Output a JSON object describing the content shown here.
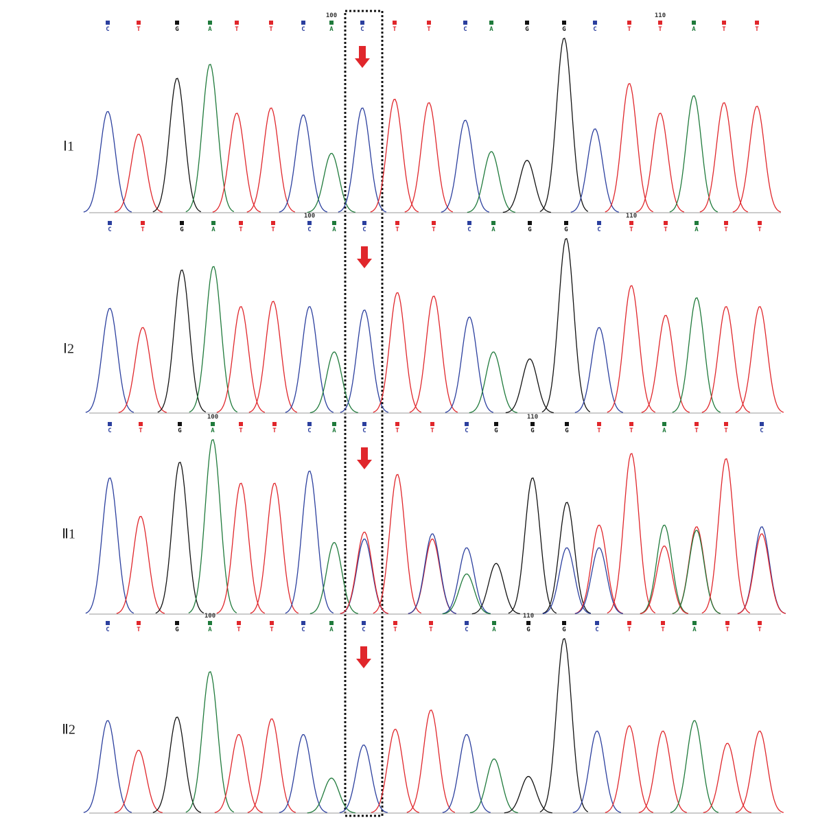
{
  "base_colors": {
    "A": "#1f7a3b",
    "C": "#2b3f9e",
    "G": "#111111",
    "T": "#e0262b"
  },
  "tracks": [
    {
      "label": "Ⅰ1",
      "bases": [
        "C",
        "T",
        "G",
        "A",
        "T",
        "T",
        "C",
        "A",
        "C",
        "T",
        "T",
        "C",
        "A",
        "G",
        "G",
        "C",
        "T",
        "T",
        "A",
        "T",
        "T"
      ],
      "positions": [
        null,
        null,
        null,
        null,
        null,
        null,
        null,
        100,
        null,
        null,
        null,
        null,
        null,
        null,
        null,
        null,
        null,
        110,
        null,
        null,
        null
      ],
      "heights": [
        58,
        45,
        77,
        85,
        57,
        60,
        56,
        34,
        60,
        65,
        63,
        53,
        35,
        30,
        100,
        48,
        74,
        57,
        67,
        63,
        61
      ]
    },
    {
      "label": "Ⅰ2",
      "bases": [
        "C",
        "T",
        "G",
        "A",
        "T",
        "T",
        "C",
        "A",
        "C",
        "T",
        "T",
        "C",
        "A",
        "G",
        "G",
        "C",
        "T",
        "T",
        "A",
        "T",
        "T"
      ],
      "positions": [
        null,
        null,
        null,
        null,
        null,
        null,
        100,
        null,
        null,
        null,
        null,
        null,
        null,
        null,
        null,
        null,
        110,
        null,
        null,
        null,
        null
      ],
      "heights": [
        60,
        49,
        82,
        84,
        61,
        64,
        61,
        35,
        59,
        69,
        67,
        55,
        35,
        31,
        100,
        49,
        73,
        56,
        66,
        61,
        61
      ]
    },
    {
      "label": "Ⅱ1",
      "bases": [
        "C",
        "T",
        "G",
        "A",
        "T",
        "T",
        "C",
        "A",
        "C",
        "T",
        "T",
        "C",
        "G",
        "G",
        "G",
        "T",
        "T",
        "A",
        "T",
        "T",
        "C"
      ],
      "positions": [
        null,
        null,
        null,
        100,
        null,
        null,
        null,
        null,
        null,
        null,
        null,
        null,
        null,
        110,
        null,
        null,
        null,
        null,
        null,
        null,
        null
      ],
      "heights": [
        78,
        56,
        87,
        100,
        75,
        75,
        82,
        41,
        43,
        80,
        43,
        38,
        29,
        78,
        64,
        51,
        92,
        51,
        50,
        89,
        50
      ],
      "secondary": [
        null,
        null,
        null,
        null,
        null,
        null,
        null,
        null,
        {
          "base": "T",
          "height": 47
        },
        null,
        {
          "base": "C",
          "height": 46
        },
        {
          "base": "A",
          "height": 23
        },
        null,
        null,
        {
          "base": "C",
          "height": 38
        },
        {
          "base": "C",
          "height": 38
        },
        null,
        {
          "base": "T",
          "height": 39
        },
        {
          "base": "A",
          "height": 48
        },
        null,
        {
          "base": "T",
          "height": 46
        }
      ]
    },
    {
      "label": "Ⅱ2",
      "bases": [
        "C",
        "T",
        "G",
        "A",
        "T",
        "T",
        "C",
        "A",
        "C",
        "T",
        "T",
        "C",
        "A",
        "G",
        "G",
        "C",
        "T",
        "T",
        "A",
        "T",
        "T"
      ],
      "positions": [
        null,
        null,
        null,
        100,
        null,
        null,
        null,
        null,
        null,
        null,
        null,
        null,
        null,
        110,
        null,
        null,
        null,
        null,
        null,
        null,
        null
      ],
      "heights": [
        53,
        36,
        55,
        81,
        45,
        54,
        45,
        20,
        39,
        48,
        59,
        45,
        31,
        21,
        100,
        47,
        50,
        47,
        53,
        40,
        47
      ]
    }
  ]
}
